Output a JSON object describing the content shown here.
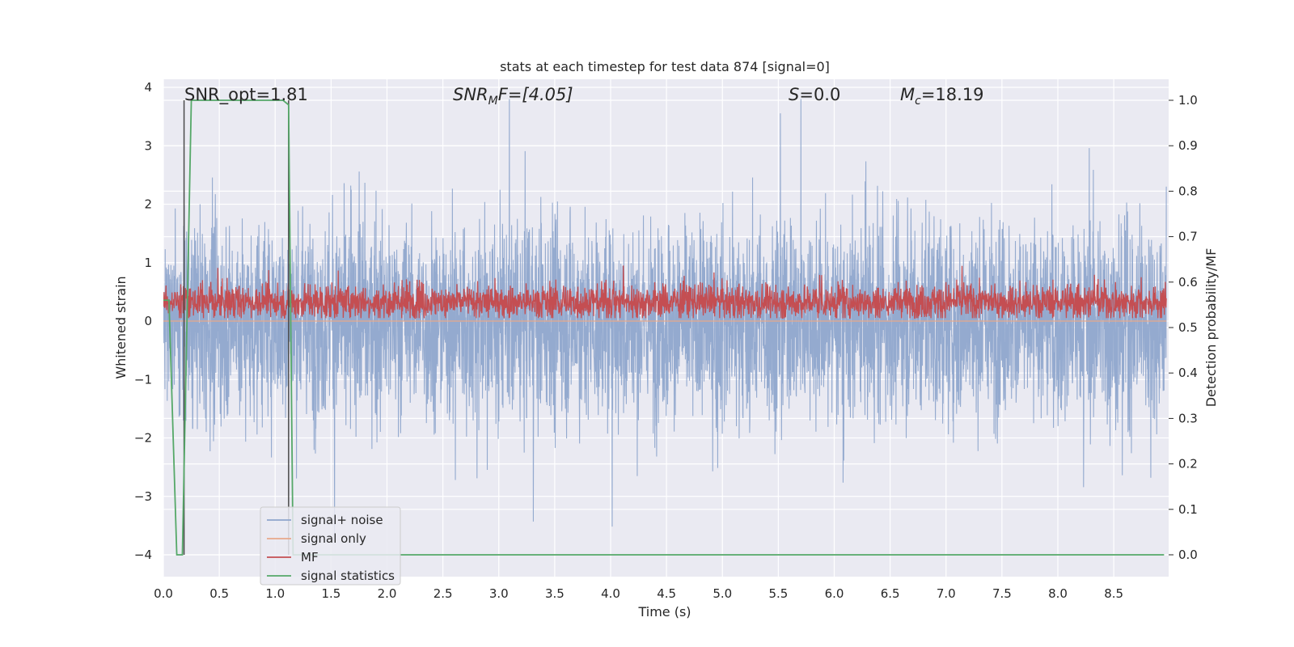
{
  "chart_data": {
    "type": "line",
    "title": "stats at each timestep for test data 874 [signal=0]",
    "xlabel": "Time (s)",
    "ylabel": "Whitened strain",
    "y2label": "Detection probability/MF",
    "xlim": [
      0.0,
      9.0
    ],
    "ylim": [
      -4.4,
      4.1
    ],
    "y2lim": [
      -0.05,
      1.03
    ],
    "x_ticks": [
      "0.0",
      "0.5",
      "1.0",
      "1.5",
      "2.0",
      "2.5",
      "3.0",
      "3.5",
      "4.0",
      "4.5",
      "5.0",
      "5.5",
      "6.0",
      "6.5",
      "7.0",
      "7.5",
      "8.0",
      "8.5"
    ],
    "y_ticks": [
      "4",
      "3",
      "2",
      "1",
      "0",
      "−1",
      "−2",
      "−3",
      "−4"
    ],
    "y2_ticks": [
      "1.0",
      "0.9",
      "0.8",
      "0.7",
      "0.6",
      "0.5",
      "0.4",
      "0.3",
      "0.2",
      "0.1",
      "0.0"
    ],
    "grid": true,
    "annotations": {
      "snr_opt": "SNR_opt=1.81",
      "snr_mf_sym": "SNR",
      "snr_mf_sub": "M",
      "snr_mf_rest": "F=[4.05]",
      "s_sym": "S",
      "s_rest": "=0.0",
      "mc_sym": "M",
      "mc_sub": "c",
      "mc_rest": "=18.19"
    },
    "vertical_markers": [
      0.185,
      1.12
    ],
    "series": [
      {
        "name": "signal+ noise",
        "color": "#8fa6cc",
        "kind": "noise",
        "amplitude_range": [
          -3.9,
          3.8
        ],
        "typical_std": 0.85
      },
      {
        "name": "signal only",
        "color": "#e8a88a",
        "kind": "flat",
        "value": 0.0
      },
      {
        "name": "MF",
        "color": "#c44e52",
        "kind": "band",
        "center": 0.33,
        "amplitude_range": [
          0.05,
          0.95
        ]
      },
      {
        "name": "signal statistics",
        "color": "#55a868",
        "kind": "step",
        "axis": "right",
        "x": [
          0.0,
          0.05,
          0.12,
          0.17,
          0.25,
          1.07,
          1.12,
          1.16,
          1.24,
          8.95
        ],
        "y": [
          0.56,
          0.56,
          0.0,
          0.0,
          1.0,
          1.0,
          0.99,
          0.0,
          0.0,
          0.0
        ]
      }
    ],
    "legend_position": "lower-left"
  }
}
